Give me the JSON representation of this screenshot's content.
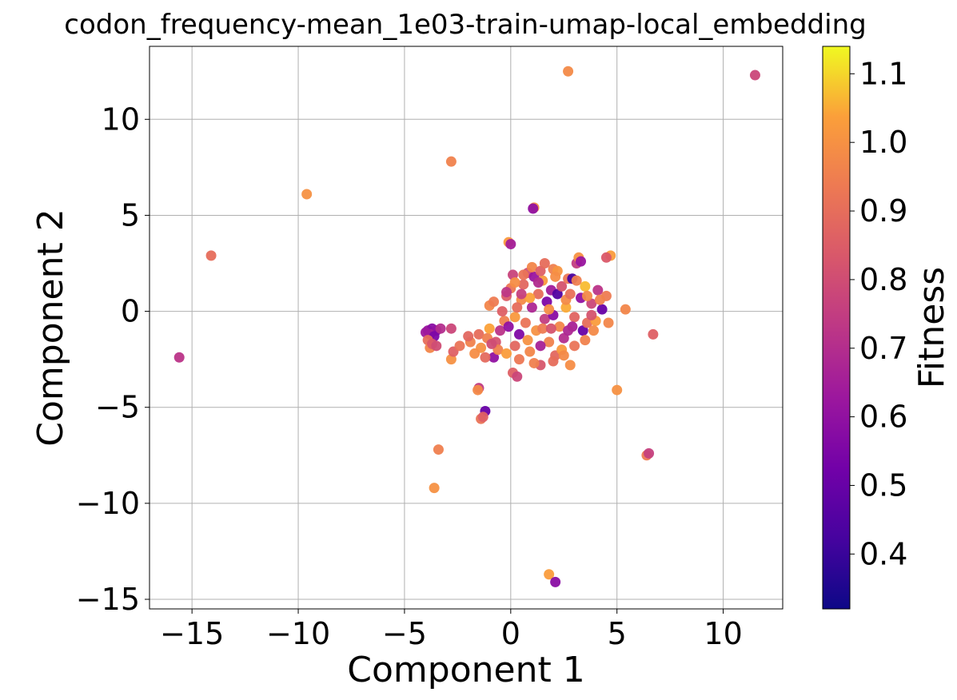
{
  "chart_data": {
    "type": "scatter",
    "title": "codon_frequency-mean_1e03-train-umap-local_embedding",
    "xlabel": "Component 1",
    "ylabel": "Component 2",
    "xlim": [
      -17,
      12.8
    ],
    "ylim": [
      -15.5,
      13.8
    ],
    "xticks": [
      -15,
      -10,
      -5,
      0,
      5,
      10
    ],
    "yticks": [
      -15,
      -10,
      -5,
      0,
      5,
      10
    ],
    "xtick_labels": [
      "−15",
      "−10",
      "−5",
      "0",
      "5",
      "10"
    ],
    "ytick_labels": [
      "−15",
      "−10",
      "−5",
      "0",
      "5",
      "10"
    ],
    "grid": true,
    "colormap": "plasma",
    "colorbar": {
      "label": "Fitness",
      "range": [
        0.32,
        1.14
      ],
      "ticks": [
        0.4,
        0.5,
        0.6,
        0.7,
        0.8,
        0.9,
        1.0,
        1.1
      ],
      "tick_labels": [
        "0.4",
        "0.5",
        "0.6",
        "0.7",
        "0.8",
        "0.9",
        "1.0",
        "1.1"
      ]
    },
    "points": [
      {
        "x": 11.5,
        "y": 12.3,
        "c": 0.78
      },
      {
        "x": 2.7,
        "y": 12.5,
        "c": 0.98
      },
      {
        "x": -2.8,
        "y": 7.8,
        "c": 0.96
      },
      {
        "x": -9.6,
        "y": 6.1,
        "c": 1.0
      },
      {
        "x": -14.1,
        "y": 2.9,
        "c": 0.9
      },
      {
        "x": -15.6,
        "y": -2.4,
        "c": 0.72
      },
      {
        "x": 1.1,
        "y": 5.4,
        "c": 1.0
      },
      {
        "x": 1.05,
        "y": 5.35,
        "c": 0.6
      },
      {
        "x": -0.1,
        "y": 3.6,
        "c": 1.02
      },
      {
        "x": 0.0,
        "y": 3.5,
        "c": 0.65
      },
      {
        "x": 6.7,
        "y": -1.2,
        "c": 0.86
      },
      {
        "x": 5.4,
        "y": 0.1,
        "c": 0.97
      },
      {
        "x": 5.0,
        "y": -4.1,
        "c": 1.0
      },
      {
        "x": 4.7,
        "y": 2.9,
        "c": 1.03
      },
      {
        "x": 6.4,
        "y": -7.5,
        "c": 0.94
      },
      {
        "x": 6.5,
        "y": -7.4,
        "c": 0.76
      },
      {
        "x": -3.6,
        "y": -9.2,
        "c": 1.0
      },
      {
        "x": -3.4,
        "y": -7.2,
        "c": 0.95
      },
      {
        "x": -1.2,
        "y": -5.2,
        "c": 0.5
      },
      {
        "x": -1.4,
        "y": -5.6,
        "c": 0.92
      },
      {
        "x": -1.3,
        "y": -5.5,
        "c": 0.86
      },
      {
        "x": -1.5,
        "y": -4.0,
        "c": 0.74
      },
      {
        "x": -1.55,
        "y": -4.1,
        "c": 0.98
      },
      {
        "x": 1.8,
        "y": -13.7,
        "c": 1.03
      },
      {
        "x": 2.1,
        "y": -14.1,
        "c": 0.58
      },
      {
        "x": -3.9,
        "y": -1.0,
        "c": 0.62
      },
      {
        "x": -3.7,
        "y": -0.9,
        "c": 0.58
      },
      {
        "x": -3.5,
        "y": -1.0,
        "c": 0.6
      },
      {
        "x": -3.8,
        "y": -1.2,
        "c": 0.66
      },
      {
        "x": -4.0,
        "y": -1.1,
        "c": 0.63
      },
      {
        "x": -3.6,
        "y": -1.3,
        "c": 0.55
      },
      {
        "x": -3.3,
        "y": -0.9,
        "c": 0.7
      },
      {
        "x": -3.9,
        "y": -1.5,
        "c": 0.9
      },
      {
        "x": -3.8,
        "y": -1.9,
        "c": 0.97
      },
      {
        "x": -3.7,
        "y": -1.7,
        "c": 0.84
      },
      {
        "x": -3.5,
        "y": -1.8,
        "c": 0.8
      },
      {
        "x": -2.8,
        "y": -0.9,
        "c": 0.78
      },
      {
        "x": -2.8,
        "y": -2.5,
        "c": 1.0
      },
      {
        "x": -2.7,
        "y": -2.1,
        "c": 0.86
      },
      {
        "x": -2.4,
        "y": -1.8,
        "c": 0.92
      },
      {
        "x": -1.9,
        "y": -1.6,
        "c": 0.96
      },
      {
        "x": -1.5,
        "y": -1.2,
        "c": 0.9
      },
      {
        "x": -1.4,
        "y": -1.9,
        "c": 1.0
      },
      {
        "x": -1.1,
        "y": -1.4,
        "c": 0.95
      },
      {
        "x": -1.0,
        "y": -0.9,
        "c": 1.04
      },
      {
        "x": -1.0,
        "y": 0.3,
        "c": 0.97
      },
      {
        "x": -0.8,
        "y": -2.4,
        "c": 0.6
      },
      {
        "x": -0.7,
        "y": -1.6,
        "c": 0.82
      },
      {
        "x": -0.5,
        "y": -1.0,
        "c": 0.72
      },
      {
        "x": -0.3,
        "y": -0.5,
        "c": 0.95
      },
      {
        "x": -0.2,
        "y": 0.8,
        "c": 0.85
      },
      {
        "x": 0.0,
        "y": 1.2,
        "c": 0.93
      },
      {
        "x": 0.1,
        "y": 1.9,
        "c": 0.77
      },
      {
        "x": 0.2,
        "y": -0.3,
        "c": 1.02
      },
      {
        "x": 0.2,
        "y": -1.8,
        "c": 0.88
      },
      {
        "x": 0.1,
        "y": -3.2,
        "c": 0.86
      },
      {
        "x": 0.3,
        "y": -3.4,
        "c": 0.78
      },
      {
        "x": 0.4,
        "y": -1.2,
        "c": 0.56
      },
      {
        "x": 0.5,
        "y": 0.6,
        "c": 0.98
      },
      {
        "x": 0.6,
        "y": 1.4,
        "c": 0.88
      },
      {
        "x": 0.7,
        "y": -0.6,
        "c": 0.92
      },
      {
        "x": 0.8,
        "y": 2.0,
        "c": 0.8
      },
      {
        "x": 0.9,
        "y": -2.1,
        "c": 0.97
      },
      {
        "x": 1.0,
        "y": 0.2,
        "c": 0.68
      },
      {
        "x": 1.1,
        "y": 1.8,
        "c": 0.62
      },
      {
        "x": 1.2,
        "y": -1.0,
        "c": 1.0
      },
      {
        "x": 1.3,
        "y": 0.9,
        "c": 0.9
      },
      {
        "x": 1.4,
        "y": -2.8,
        "c": 0.83
      },
      {
        "x": 1.5,
        "y": 1.6,
        "c": 1.02
      },
      {
        "x": 1.6,
        "y": -0.4,
        "c": 0.75
      },
      {
        "x": 1.7,
        "y": 0.5,
        "c": 0.55
      },
      {
        "x": 1.8,
        "y": -1.6,
        "c": 0.96
      },
      {
        "x": 1.9,
        "y": 1.1,
        "c": 0.64
      },
      {
        "x": 2.0,
        "y": 2.2,
        "c": 0.95
      },
      {
        "x": 2.1,
        "y": -2.3,
        "c": 0.88
      },
      {
        "x": 2.2,
        "y": 0.9,
        "c": 0.45
      },
      {
        "x": 2.3,
        "y": -0.8,
        "c": 0.97
      },
      {
        "x": 2.4,
        "y": 1.3,
        "c": 0.82
      },
      {
        "x": 2.5,
        "y": -1.4,
        "c": 0.7
      },
      {
        "x": 2.6,
        "y": 0.2,
        "c": 1.05
      },
      {
        "x": 2.7,
        "y": 1.7,
        "c": 0.93
      },
      {
        "x": 2.8,
        "y": -2.8,
        "c": 0.99
      },
      {
        "x": 2.9,
        "y": 1.7,
        "c": 0.43
      },
      {
        "x": 3.0,
        "y": -0.3,
        "c": 0.87
      },
      {
        "x": 3.1,
        "y": 2.5,
        "c": 0.75
      },
      {
        "x": 3.2,
        "y": 2.8,
        "c": 1.0
      },
      {
        "x": 3.3,
        "y": 0.7,
        "c": 0.6
      },
      {
        "x": 3.4,
        "y": -1.0,
        "c": 0.5
      },
      {
        "x": 3.5,
        "y": 1.3,
        "c": 1.07
      },
      {
        "x": 3.6,
        "y": -0.6,
        "c": 0.9
      },
      {
        "x": 3.8,
        "y": 0.4,
        "c": 0.78
      },
      {
        "x": 4.0,
        "y": -0.5,
        "c": 1.03
      },
      {
        "x": 4.1,
        "y": 1.1,
        "c": 0.72
      },
      {
        "x": 4.3,
        "y": 0.1,
        "c": 0.5
      },
      {
        "x": 4.5,
        "y": 2.8,
        "c": 0.84
      },
      {
        "x": 4.6,
        "y": -0.6,
        "c": 0.97
      },
      {
        "x": 4.5,
        "y": 0.8,
        "c": 0.94
      },
      {
        "x": 3.3,
        "y": 2.6,
        "c": 0.62
      },
      {
        "x": 2.6,
        "y": 0.6,
        "c": 0.98
      },
      {
        "x": 2.0,
        "y": -0.2,
        "c": 0.58
      },
      {
        "x": 1.5,
        "y": -0.9,
        "c": 0.94
      },
      {
        "x": 0.8,
        "y": -1.5,
        "c": 1.0
      },
      {
        "x": 0.3,
        "y": 0.2,
        "c": 0.9
      },
      {
        "x": -0.4,
        "y": 0.0,
        "c": 0.86
      },
      {
        "x": -0.6,
        "y": -2.0,
        "c": 0.96
      },
      {
        "x": -0.9,
        "y": -1.7,
        "c": 0.8
      },
      {
        "x": -1.7,
        "y": -2.2,
        "c": 0.99
      },
      {
        "x": -2.0,
        "y": -1.3,
        "c": 0.88
      },
      {
        "x": -0.2,
        "y": 1.0,
        "c": 0.73
      },
      {
        "x": 0.6,
        "y": 1.9,
        "c": 0.92
      },
      {
        "x": 1.3,
        "y": 1.5,
        "c": 0.69
      },
      {
        "x": 1.9,
        "y": -0.9,
        "c": 0.82
      },
      {
        "x": 2.4,
        "y": -2.0,
        "c": 1.02
      },
      {
        "x": 2.9,
        "y": -0.8,
        "c": 0.66
      },
      {
        "x": 3.6,
        "y": 0.8,
        "c": 0.98
      },
      {
        "x": 3.8,
        "y": -0.2,
        "c": 0.82
      },
      {
        "x": 4.2,
        "y": 0.6,
        "c": 0.96
      },
      {
        "x": 1.0,
        "y": 2.3,
        "c": 0.97
      },
      {
        "x": 1.4,
        "y": 2.1,
        "c": 0.86
      },
      {
        "x": 2.2,
        "y": 2.1,
        "c": 1.01
      },
      {
        "x": 0.4,
        "y": -2.5,
        "c": 0.93
      },
      {
        "x": 1.1,
        "y": -2.7,
        "c": 0.95
      },
      {
        "x": 2.0,
        "y": -2.6,
        "c": 0.9
      },
      {
        "x": 2.5,
        "y": -2.3,
        "c": 0.98
      },
      {
        "x": 3.0,
        "y": -1.8,
        "c": 0.92
      },
      {
        "x": 3.5,
        "y": -1.5,
        "c": 0.96
      },
      {
        "x": -1.2,
        "y": -2.4,
        "c": 0.89
      },
      {
        "x": -0.2,
        "y": -2.2,
        "c": 1.03
      },
      {
        "x": 0.9,
        "y": 0.7,
        "c": 1.04
      },
      {
        "x": 1.8,
        "y": 0.1,
        "c": 0.99
      },
      {
        "x": 2.8,
        "y": 0.9,
        "c": 0.91
      },
      {
        "x": 3.9,
        "y": -1.0,
        "c": 0.98
      },
      {
        "x": -0.8,
        "y": 0.5,
        "c": 0.94
      },
      {
        "x": 0.2,
        "y": 1.5,
        "c": 0.99
      },
      {
        "x": 1.6,
        "y": 2.5,
        "c": 0.9
      },
      {
        "x": 2.1,
        "y": 1.8,
        "c": 0.99
      },
      {
        "x": 3.1,
        "y": 1.6,
        "c": 0.95
      },
      {
        "x": -0.1,
        "y": -0.8,
        "c": 0.6
      },
      {
        "x": 1.4,
        "y": -1.8,
        "c": 0.66
      },
      {
        "x": 2.7,
        "y": -1.0,
        "c": 0.68
      },
      {
        "x": 0.5,
        "y": 0.9,
        "c": 0.76
      }
    ]
  }
}
